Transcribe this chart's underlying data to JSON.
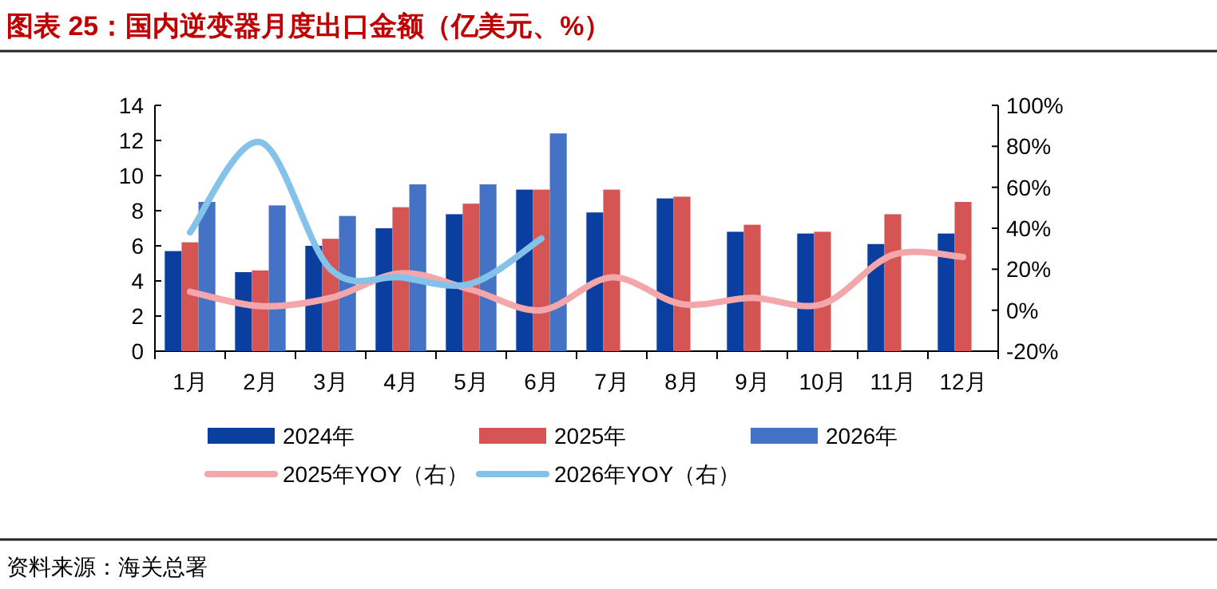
{
  "chart_data": {
    "type": "bar",
    "title": "图表 25：国内逆变器月度出口金额（亿美元、%）",
    "categories": [
      "1月",
      "2月",
      "3月",
      "4月",
      "5月",
      "6月",
      "7月",
      "8月",
      "9月",
      "10月",
      "11月",
      "12月"
    ],
    "series": [
      {
        "name": "2024年",
        "color": "#0b3f9f",
        "values": [
          5.7,
          4.5,
          6.0,
          7.0,
          7.8,
          9.2,
          7.9,
          8.7,
          6.8,
          6.7,
          6.1,
          6.7
        ]
      },
      {
        "name": "2025年",
        "color": "#d55454",
        "values": [
          6.2,
          4.6,
          6.4,
          8.2,
          8.4,
          9.2,
          9.2,
          8.8,
          7.2,
          6.8,
          7.8,
          8.5
        ]
      },
      {
        "name": "2026年",
        "color": "#4472c4",
        "values": [
          8.5,
          8.3,
          7.7,
          9.5,
          9.5,
          12.4,
          null,
          null,
          null,
          null,
          null,
          null
        ]
      },
      {
        "name": "2025年YOY（右）",
        "type": "line",
        "axis": "y2",
        "color": "#f4a7aa",
        "values": [
          9,
          2,
          6,
          18,
          10,
          0,
          16,
          3,
          6,
          3,
          27,
          26
        ]
      },
      {
        "name": "2026年YOY（右）",
        "type": "line",
        "axis": "y2",
        "color": "#85c2ea",
        "values": [
          38,
          82,
          20,
          16,
          13,
          35,
          null,
          null,
          null,
          null,
          null,
          null
        ]
      }
    ],
    "ylim": [
      0,
      14
    ],
    "yticks": [
      0,
      2,
      4,
      6,
      8,
      10,
      12,
      14
    ],
    "y2lim": [
      -20,
      100
    ],
    "y2ticks": [
      {
        "value": -20,
        "label": "-20%"
      },
      {
        "value": 0,
        "label": "0%"
      },
      {
        "value": 20,
        "label": "20%"
      },
      {
        "value": 40,
        "label": "40%"
      },
      {
        "value": 60,
        "label": "60%"
      },
      {
        "value": 80,
        "label": "80%"
      },
      {
        "value": 100,
        "label": "100%"
      }
    ],
    "legend": "bottom",
    "annotations": [
      "资料来源：海关总署"
    ]
  }
}
